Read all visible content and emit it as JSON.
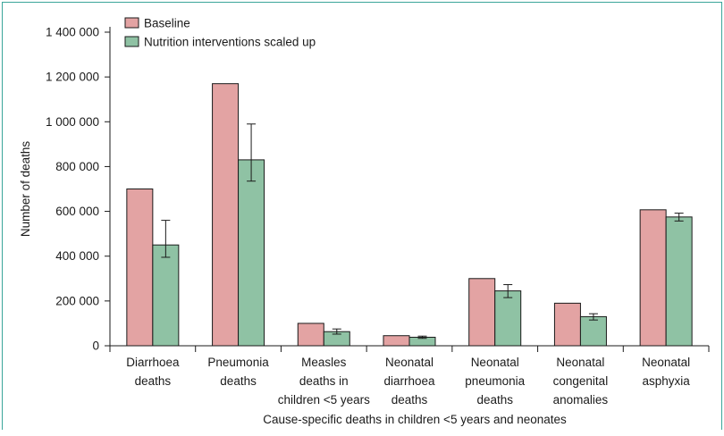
{
  "colors": {
    "frame": "#3aa59a",
    "baseline": "#e3a3a3",
    "nutrition": "#8fc2a4",
    "axis": "#1a1a1a"
  },
  "chart_data": {
    "type": "bar",
    "title": "",
    "xlabel": "Cause-specific deaths in children <5 years and neonates",
    "ylabel": "Number of deaths",
    "ylim": [
      0,
      1400000
    ],
    "yticks": [
      0,
      200000,
      400000,
      600000,
      800000,
      1000000,
      1200000,
      1400000
    ],
    "ytick_labels": [
      "0",
      "200 000",
      "400 000",
      "600 000",
      "800 000",
      "1 000 000",
      "1 200 000",
      "1 400 000"
    ],
    "legend_position": "top-left",
    "grid": false,
    "categories": [
      [
        "Diarrhoea",
        "deaths"
      ],
      [
        "Pneumonia",
        "deaths"
      ],
      [
        "Measles",
        "deaths in",
        "children <5 years"
      ],
      [
        "Neonatal",
        "diarrhoea",
        "deaths"
      ],
      [
        "Neonatal",
        "pneumonia",
        "deaths"
      ],
      [
        "Neonatal",
        "congenital",
        "anomalies"
      ],
      [
        "Neonatal",
        "asphyxia"
      ]
    ],
    "series": [
      {
        "name": "Baseline",
        "values": [
          700000,
          1170000,
          100000,
          45000,
          300000,
          190000,
          607000
        ]
      },
      {
        "name": "Nutrition interventions scaled up",
        "values": [
          450000,
          830000,
          63000,
          38000,
          245000,
          130000,
          575000
        ],
        "error_low": [
          395000,
          735000,
          52000,
          33000,
          215000,
          115000,
          557000
        ],
        "error_high": [
          560000,
          990000,
          75000,
          43000,
          273000,
          143000,
          592000
        ]
      }
    ]
  }
}
